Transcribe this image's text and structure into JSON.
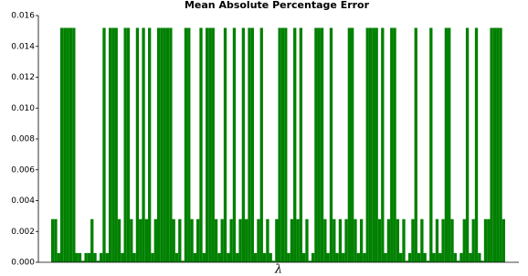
{
  "chart_data": {
    "type": "bar",
    "title": "Mean Absolute Percentage Error",
    "x_label": "λ",
    "categories": [
      null,
      null,
      null,
      null,
      null,
      null,
      null,
      null,
      null,
      null,
      null,
      null,
      null,
      null,
      null,
      null,
      null,
      null,
      null,
      null,
      null,
      null,
      null,
      null,
      null,
      null,
      null,
      null,
      null,
      null,
      null,
      null,
      null,
      null,
      null,
      null,
      null,
      null,
      null,
      null,
      null,
      null,
      null,
      null,
      null,
      null,
      null,
      null,
      null,
      null,
      null,
      null,
      null,
      null,
      null,
      null,
      null,
      null,
      null,
      null,
      null,
      null,
      null,
      null,
      null,
      null,
      null,
      null,
      null,
      null,
      null,
      null,
      null,
      null,
      null,
      null,
      null,
      null,
      null,
      null,
      null,
      null,
      null,
      null,
      null,
      null,
      null,
      null,
      null,
      null,
      null,
      null,
      null,
      null,
      null,
      null,
      null,
      null,
      null,
      null,
      null,
      null,
      null,
      null,
      null,
      null,
      null,
      null,
      null,
      null,
      null,
      null,
      null,
      null,
      null,
      null,
      null,
      null,
      null,
      null,
      null,
      null,
      null,
      null,
      null,
      null,
      null,
      null,
      null,
      null,
      null,
      null,
      null,
      null,
      null,
      null,
      null,
      null,
      null,
      null,
      null,
      null,
      null,
      null,
      null,
      null,
      null,
      null,
      null,
      null
    ],
    "values": [
      0.0028,
      0.0028,
      0.0006,
      0.0152,
      0.0152,
      0.0152,
      0.0152,
      0.0152,
      0.0006,
      0.0006,
      0.0001,
      0.0006,
      0.0006,
      0.0028,
      0.0006,
      0.0001,
      0.0006,
      0.0152,
      0.0006,
      0.0152,
      0.0152,
      0.0152,
      0.0028,
      0.0006,
      0.0152,
      0.0152,
      0.0028,
      0.0006,
      0.0152,
      0.0028,
      0.0152,
      0.0028,
      0.0152,
      0.0006,
      0.0028,
      0.0152,
      0.0152,
      0.0152,
      0.0152,
      0.0152,
      0.0028,
      0.0006,
      0.0028,
      0.0001,
      0.0152,
      0.0152,
      0.0028,
      0.0006,
      0.0028,
      0.0152,
      0.0006,
      0.0152,
      0.0152,
      0.0152,
      0.0028,
      0.0006,
      0.0028,
      0.0152,
      0.0006,
      0.0028,
      0.0152,
      0.0006,
      0.0028,
      0.0152,
      0.0028,
      0.0152,
      0.0152,
      0.0006,
      0.0028,
      0.0152,
      0.0006,
      0.0028,
      0.0006,
      0.0001,
      0.0028,
      0.0152,
      0.0152,
      0.0152,
      0.0006,
      0.0028,
      0.0152,
      0.0028,
      0.0152,
      0.0006,
      0.0028,
      0.0001,
      0.0006,
      0.0152,
      0.0152,
      0.0152,
      0.0028,
      0.0006,
      0.0152,
      0.0028,
      0.0006,
      0.0028,
      0.0006,
      0.0028,
      0.0152,
      0.0152,
      0.0028,
      0.0006,
      0.0028,
      0.0006,
      0.0152,
      0.0152,
      0.0152,
      0.0152,
      0.0028,
      0.0152,
      0.0006,
      0.0028,
      0.0152,
      0.0152,
      0.0028,
      0.0006,
      0.0028,
      0.0001,
      0.0006,
      0.0028,
      0.0152,
      0.0006,
      0.0028,
      0.0006,
      0.0001,
      0.0152,
      0.0006,
      0.0028,
      0.0006,
      0.0028,
      0.0152,
      0.0152,
      0.0028,
      0.0006,
      0.0001,
      0.0006,
      0.0028,
      0.0152,
      0.0006,
      0.0028,
      0.0152,
      0.0006,
      0.0001,
      0.0028,
      0.0028,
      0.0152,
      0.0152,
      0.0152,
      0.0152,
      0.0028
    ],
    "color": "#008000",
    "ylim": [
      0,
      0.016
    ],
    "yticks": [
      {
        "value": 0,
        "label": "0.000"
      },
      {
        "value": 0.002,
        "label": "0.002"
      },
      {
        "value": 0.004,
        "label": "0.004"
      },
      {
        "value": 0.006,
        "label": "0.006"
      },
      {
        "value": 0.008,
        "label": "0.008"
      },
      {
        "value": 0.01,
        "label": "0.010"
      },
      {
        "value": 0.012,
        "label": "0.012"
      },
      {
        "value": 0.014,
        "label": "0.014"
      },
      {
        "value": 0.016,
        "label": "0.016"
      }
    ],
    "grid": false
  }
}
